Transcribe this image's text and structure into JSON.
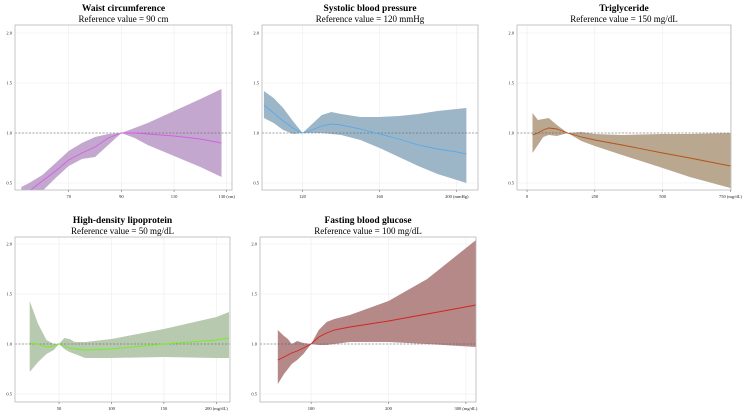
{
  "chart_data": [
    {
      "type": "area",
      "title": "Waist circumference",
      "subtitle": "Reference value = 90 cm",
      "xlim": [
        49.6,
        132
      ],
      "ylim": [
        0.43,
        2.08
      ],
      "xticks": [
        70,
        90,
        110,
        130
      ],
      "xtick_labels": [
        "70",
        "90",
        "110",
        "130 (cm)"
      ],
      "yticks": [
        0.5,
        1.0,
        1.5,
        2.0
      ],
      "ytick_labels": [
        "0.5",
        "1.0",
        "1.5",
        "2.0"
      ],
      "reference_line": 1.0,
      "fill_color": "#c3a7cf",
      "line_color": "#d45fe6",
      "x": [
        52,
        55,
        60,
        65,
        70,
        75,
        80,
        85,
        90,
        95,
        100,
        110,
        120,
        128
      ],
      "estimate": [
        0.36,
        0.42,
        0.52,
        0.62,
        0.73,
        0.8,
        0.86,
        0.95,
        1.0,
        1.0,
        0.99,
        0.97,
        0.94,
        0.9
      ],
      "lower": [
        0.3,
        0.33,
        0.42,
        0.55,
        0.67,
        0.74,
        0.76,
        0.88,
        1.0,
        0.95,
        0.88,
        0.77,
        0.66,
        0.56
      ],
      "upper": [
        0.46,
        0.5,
        0.58,
        0.7,
        0.82,
        0.9,
        0.96,
        0.99,
        1.0,
        1.05,
        1.1,
        1.22,
        1.34,
        1.44
      ]
    },
    {
      "type": "area",
      "title": "Systolic blood pressure",
      "subtitle": "Reference value = 120 mmHg",
      "xlim": [
        99,
        211
      ],
      "ylim": [
        0.43,
        2.08
      ],
      "xticks": [
        120,
        160,
        200
      ],
      "xtick_labels": [
        "120",
        "160",
        "200 (mmHg)"
      ],
      "yticks": [
        0.5,
        1.0,
        1.5,
        2.0
      ],
      "ytick_labels": [
        "0.5",
        "1.0",
        "1.5",
        "2.0"
      ],
      "reference_line": 1.0,
      "fill_color": "#9db6c7",
      "line_color": "#5aa9ea",
      "x": [
        100,
        105,
        110,
        115,
        120,
        125,
        130,
        135,
        140,
        150,
        160,
        170,
        180,
        190,
        200,
        205
      ],
      "estimate": [
        1.28,
        1.2,
        1.12,
        1.05,
        1.0,
        1.03,
        1.07,
        1.09,
        1.08,
        1.04,
        0.99,
        0.94,
        0.88,
        0.84,
        0.81,
        0.79
      ],
      "lower": [
        1.15,
        1.1,
        1.03,
        0.99,
        1.0,
        1.0,
        1.0,
        0.99,
        0.98,
        0.93,
        0.85,
        0.76,
        0.67,
        0.59,
        0.53,
        0.5
      ],
      "upper": [
        1.42,
        1.35,
        1.25,
        1.12,
        1.0,
        1.09,
        1.18,
        1.21,
        1.19,
        1.16,
        1.16,
        1.17,
        1.19,
        1.22,
        1.24,
        1.25
      ]
    },
    {
      "type": "area",
      "title": "Triglyceride",
      "subtitle": "Reference value = 150 mg/dL",
      "xlim": [
        -37,
        752
      ],
      "ylim": [
        0.43,
        2.08
      ],
      "xticks": [
        0,
        250,
        500,
        750
      ],
      "xtick_labels": [
        "0",
        "250",
        "500",
        "750 (mg/dL)"
      ],
      "yticks": [
        0.5,
        1.0,
        1.5,
        2.0
      ],
      "ytick_labels": [
        "0.5",
        "1.0",
        "1.5",
        "2.0"
      ],
      "reference_line": 1.0,
      "fill_color": "#baa78f",
      "line_color": "#b4521a",
      "x": [
        20,
        40,
        60,
        80,
        110,
        150,
        200,
        250,
        350,
        500,
        600,
        750
      ],
      "estimate": [
        0.98,
        1.0,
        1.03,
        1.05,
        1.04,
        1.0,
        0.96,
        0.93,
        0.88,
        0.8,
        0.75,
        0.67
      ],
      "lower": [
        0.8,
        0.88,
        0.96,
        0.98,
        0.97,
        1.0,
        0.92,
        0.87,
        0.78,
        0.65,
        0.56,
        0.45
      ],
      "upper": [
        1.2,
        1.13,
        1.14,
        1.15,
        1.08,
        1.0,
        1.01,
        0.99,
        0.98,
        0.99,
        0.99,
        1.0
      ]
    },
    {
      "type": "area",
      "title": "High-density lipoprotein",
      "subtitle": "Reference value = 50 mg/dL",
      "xlim": [
        8,
        213
      ],
      "ylim": [
        0.42,
        2.07
      ],
      "xticks": [
        50,
        100,
        150,
        200
      ],
      "xtick_labels": [
        "50",
        "100",
        "150",
        "200 (mg/dL)"
      ],
      "yticks": [
        0.5,
        1.0,
        1.5,
        2.0
      ],
      "ytick_labels": [
        "0.5",
        "1.0",
        "1.5",
        "2.0"
      ],
      "reference_line": 1.0,
      "fill_color": "#b7caaf",
      "line_color": "#74ee24",
      "x": [
        22,
        30,
        38,
        45,
        50,
        55,
        60,
        65,
        75,
        100,
        150,
        200,
        212
      ],
      "estimate": [
        1.01,
        1.0,
        0.97,
        0.98,
        1.0,
        0.98,
        0.96,
        0.95,
        0.94,
        0.95,
        1.0,
        1.04,
        1.06
      ],
      "lower": [
        0.72,
        0.82,
        0.9,
        0.94,
        1.0,
        0.95,
        0.92,
        0.9,
        0.86,
        0.86,
        0.87,
        0.86,
        0.86
      ],
      "upper": [
        1.43,
        1.2,
        1.04,
        1.0,
        1.0,
        1.06,
        1.05,
        1.02,
        1.02,
        1.05,
        1.15,
        1.27,
        1.32
      ]
    },
    {
      "type": "area",
      "title": "Fasting blood glucose",
      "subtitle": "Reference value = 100 mg/dL",
      "xlim": [
        34,
        313
      ],
      "ylim": [
        0.42,
        2.07
      ],
      "xticks": [
        100,
        200,
        300
      ],
      "xtick_labels": [
        "100",
        "200",
        "300 (mg/dL)"
      ],
      "yticks": [
        0.5,
        1.0,
        1.5,
        2.0
      ],
      "ytick_labels": [
        "0.5",
        "1.0",
        "1.5",
        "2.0"
      ],
      "reference_line": 1.0,
      "fill_color": "#b58988",
      "line_color": "#d42222",
      "x": [
        57,
        65,
        70,
        75,
        82,
        90,
        100,
        110,
        120,
        130,
        150,
        200,
        250,
        313
      ],
      "estimate": [
        0.84,
        0.87,
        0.89,
        0.91,
        0.93,
        0.96,
        1.0,
        1.07,
        1.11,
        1.14,
        1.17,
        1.23,
        1.3,
        1.39
      ],
      "lower": [
        0.6,
        0.7,
        0.75,
        0.8,
        0.84,
        0.9,
        1.0,
        0.99,
        0.99,
        1.0,
        1.02,
        1.02,
        1.0,
        0.97
      ],
      "upper": [
        1.14,
        1.08,
        1.05,
        1.0,
        1.03,
        1.01,
        1.0,
        1.14,
        1.22,
        1.25,
        1.29,
        1.43,
        1.65,
        2.04
      ]
    }
  ]
}
